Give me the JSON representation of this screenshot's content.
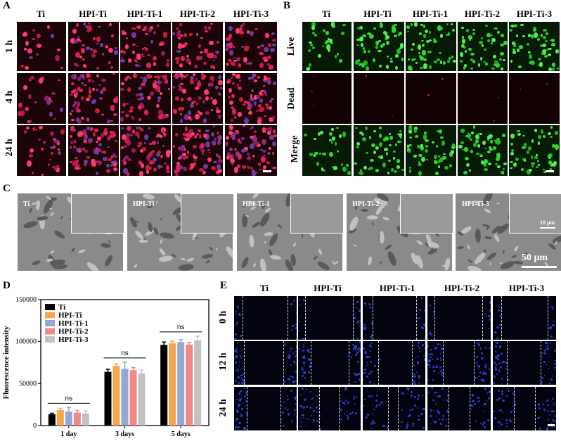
{
  "panels": {
    "A": {
      "label": "A",
      "columns": [
        "Ti",
        "HPI-Ti",
        "HPI-Ti-1",
        "HPI-Ti-2",
        "HPI-Ti-3"
      ],
      "rows": [
        "1 h",
        "4 h",
        "24 h"
      ]
    },
    "B": {
      "label": "B",
      "columns": [
        "Ti",
        "HPI-Ti",
        "HPI-Ti-1",
        "HPI-Ti-2",
        "HPI-Ti-3"
      ],
      "rows": [
        "Live",
        "Dead",
        "Merge"
      ]
    },
    "C": {
      "label": "C",
      "tiles": [
        "Ti",
        "HPI-Ti",
        "HPI-Ti-1",
        "HPI-Ti-2",
        "HPI-Ti-3"
      ],
      "inset_scale": "10 μm",
      "scale": "50 μm"
    },
    "D": {
      "label": "D"
    },
    "E": {
      "label": "E",
      "columns": [
        "Ti",
        "HPI-Ti",
        "HPI-Ti-1",
        "HPI-Ti-2",
        "HPI-Ti-3"
      ],
      "rows": [
        "0 h",
        "12 h",
        "24 h"
      ]
    }
  },
  "chart_data": {
    "type": "bar",
    "ylabel": "Fluorescence intensity",
    "xlabel": "",
    "ylim": [
      0,
      150000
    ],
    "yticks": [
      "0",
      "50000",
      "100000",
      "150000"
    ],
    "categories": [
      "1 day",
      "3 days",
      "5 days"
    ],
    "legend_position": "top-left",
    "significance": [
      "ns",
      "ns",
      "ns"
    ],
    "series": [
      {
        "name": "Ti",
        "color": "#000000",
        "values": [
          13500,
          64000,
          96000
        ],
        "errors": [
          1200,
          3000,
          3500
        ]
      },
      {
        "name": "HPI-Ti",
        "color": "#f5a84e",
        "values": [
          18500,
          71000,
          98000
        ],
        "errors": [
          2000,
          2500,
          2500
        ]
      },
      {
        "name": "HPI-Ti-1",
        "color": "#93a9d4",
        "values": [
          16500,
          67500,
          99500
        ],
        "errors": [
          5000,
          8000,
          3000
        ]
      },
      {
        "name": "HPI-Ti-2",
        "color": "#ee8b83",
        "values": [
          15500,
          66000,
          96500
        ],
        "errors": [
          2500,
          3000,
          2500
        ]
      },
      {
        "name": "HPI-Ti-3",
        "color": "#c3c3c3",
        "values": [
          14500,
          62000,
          101500
        ],
        "errors": [
          3000,
          4000,
          5000
        ]
      }
    ]
  }
}
